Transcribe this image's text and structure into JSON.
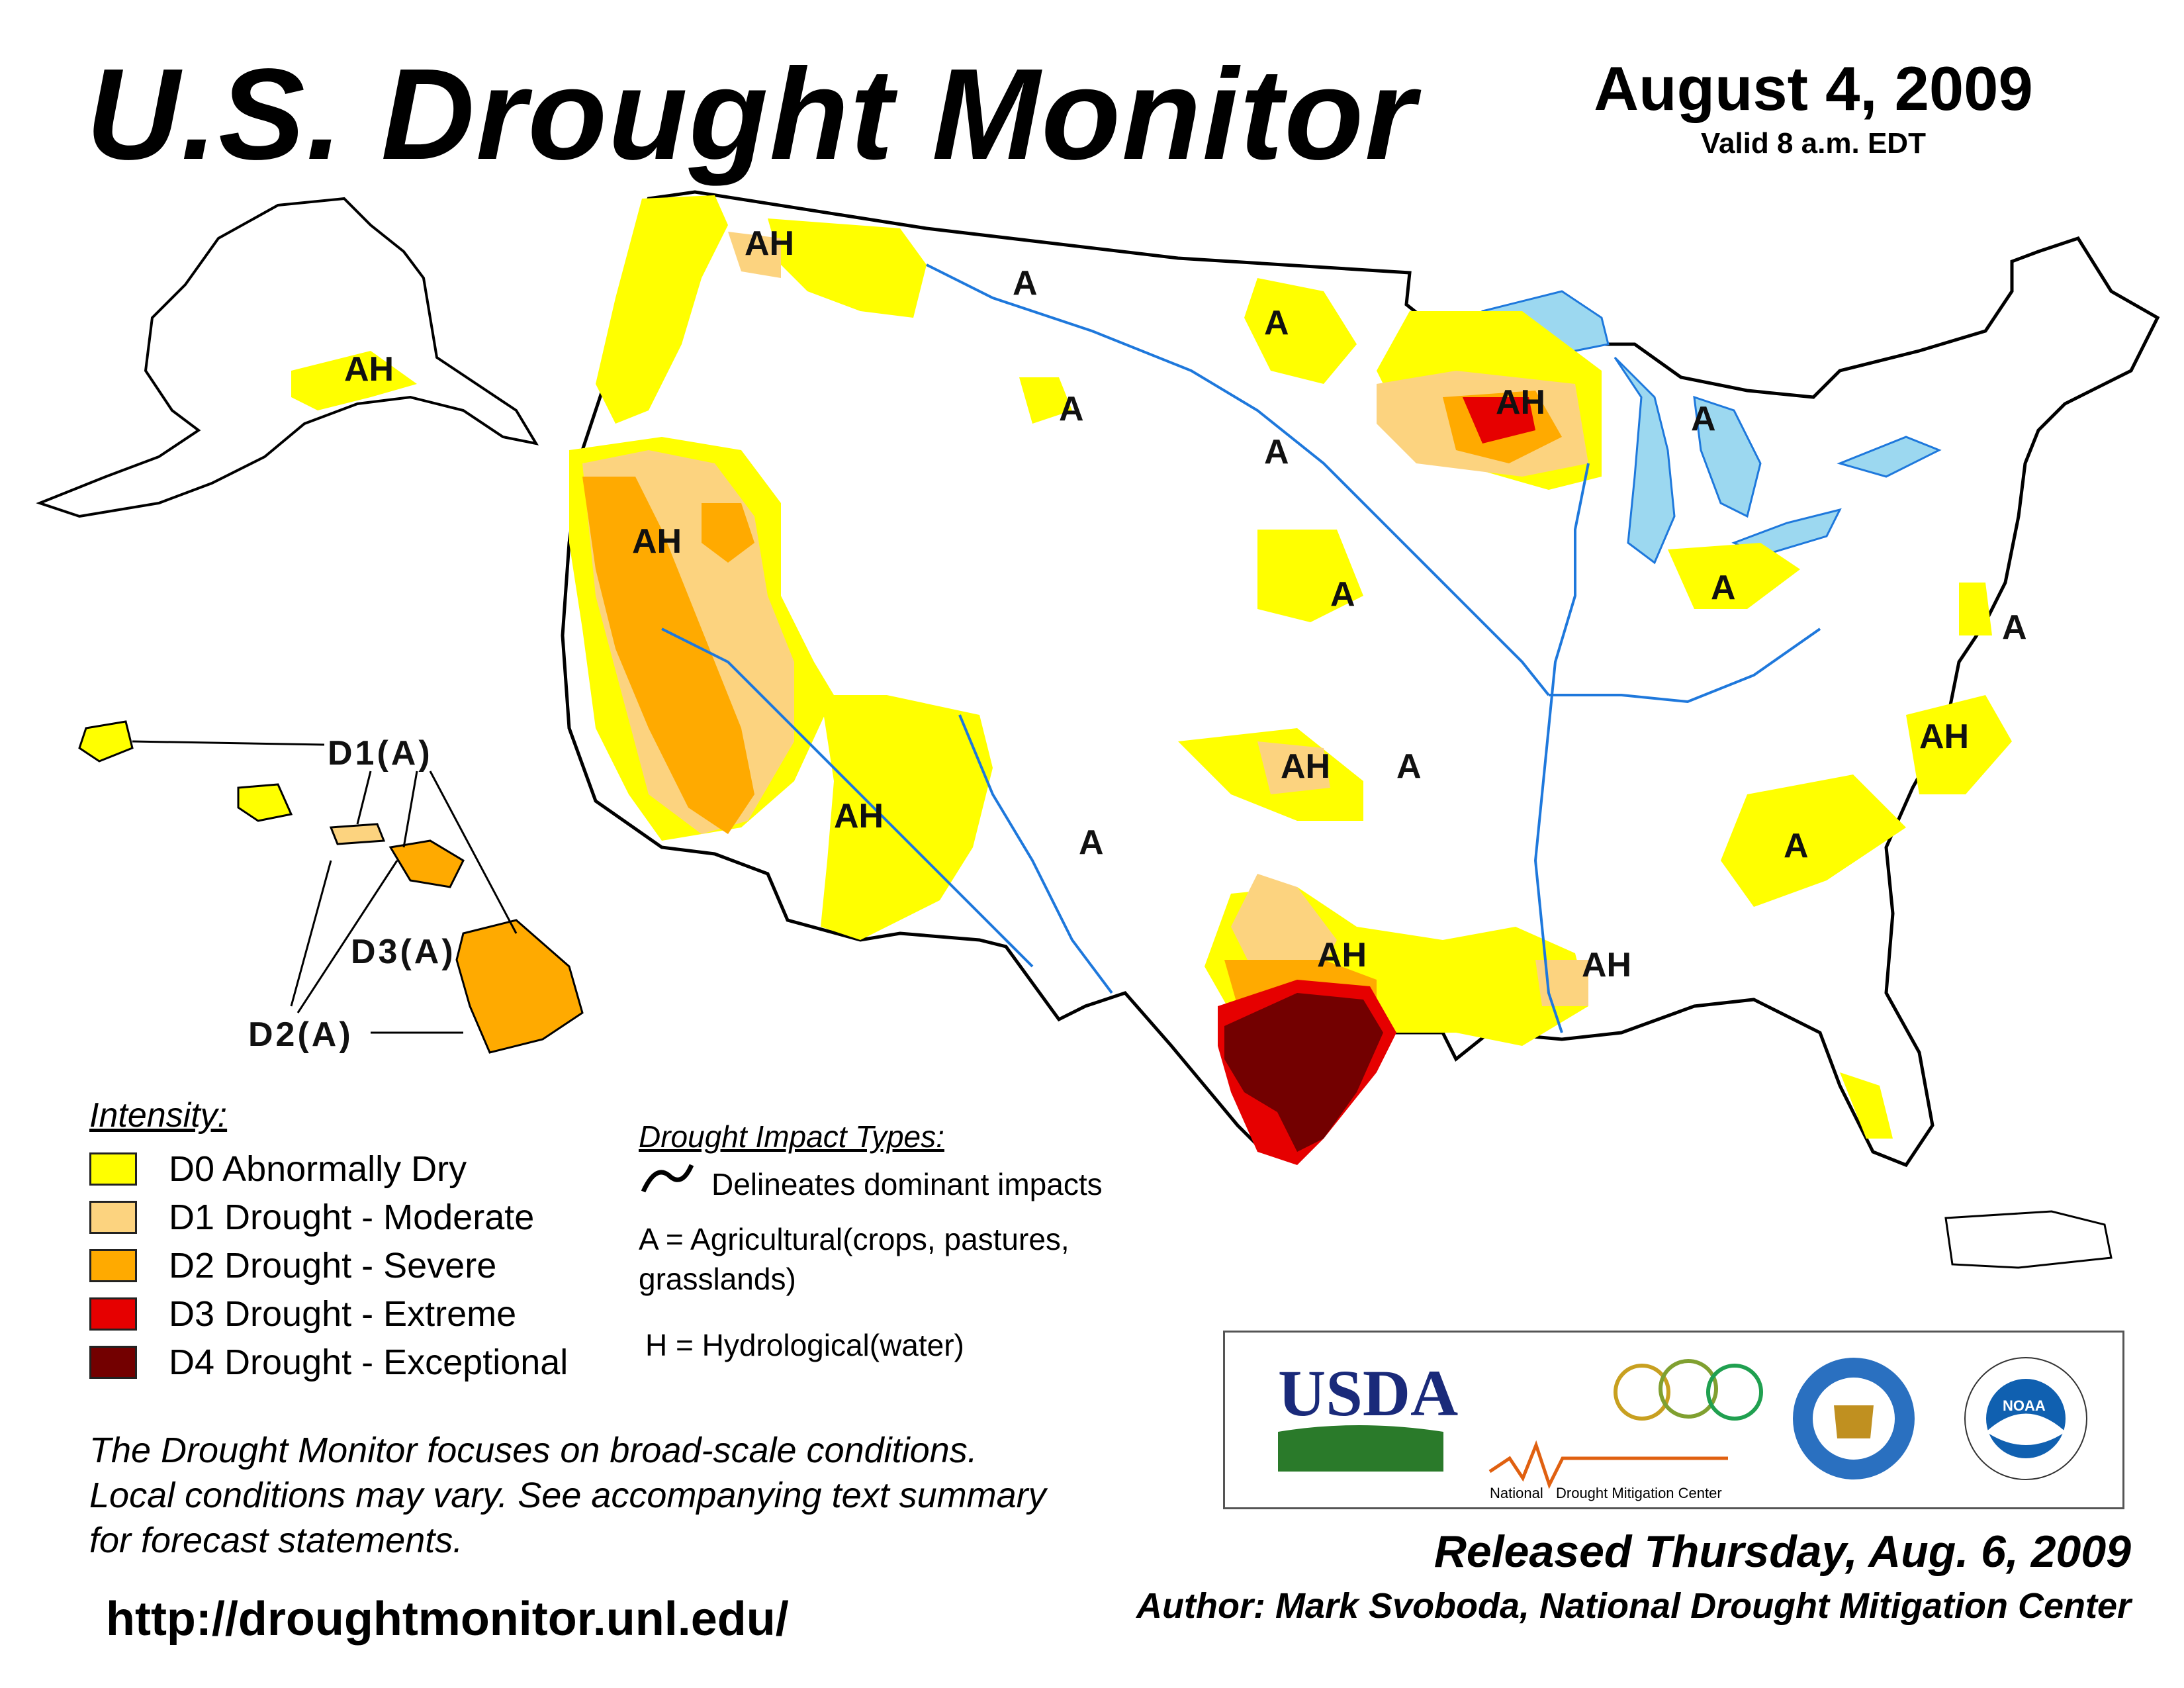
{
  "header": {
    "title": "U.S. Drought Monitor",
    "date": "August 4, 2009",
    "valid": "Valid 8 a.m. EDT"
  },
  "map": {
    "impact_labels": [
      "AH",
      "A",
      "A",
      "A",
      "A",
      "A",
      "AH",
      "A",
      "A",
      "AH",
      "AH",
      "A",
      "AH",
      "A",
      "AH",
      "A",
      "AH",
      "A",
      "AH",
      "AH"
    ],
    "hawaii_labels": [
      "D1(A)",
      "D3(A)",
      "D2(A)"
    ]
  },
  "legend": {
    "title": "Intensity:",
    "items": [
      {
        "label": "D0 Abnormally Dry",
        "color": "#FFFF00"
      },
      {
        "label": "D1 Drought - Moderate",
        "color": "#FCD37F"
      },
      {
        "label": "D2 Drought - Severe",
        "color": "#FFAA00"
      },
      {
        "label": "D3 Drought - Extreme",
        "color": "#E60000"
      },
      {
        "label": "D4 Drought - Exceptional",
        "color": "#730000"
      }
    ]
  },
  "impacts": {
    "title": "Drought Impact Types:",
    "line": "Delineates dominant impacts",
    "agricultural_1": "A = Agricultural(crops, pastures,",
    "agricultural_2": "grasslands)",
    "hydrological": "H = Hydrological(water)"
  },
  "note": {
    "line1": "The Drought Monitor focuses on broad-scale conditions.",
    "line2": "Local conditions may vary. See accompanying text summary",
    "line3": "for forecast statements."
  },
  "url": "http://droughtmonitor.unl.edu/",
  "logos": {
    "usda": "USDA",
    "ndmc_1": "National",
    "ndmc_2": "Drought Mitigation Center",
    "noaa": "NOAA"
  },
  "footer": {
    "released": "Released Thursday, Aug. 6, 2009",
    "author": "Author: Mark Svoboda, National Drought Mitigation Center"
  },
  "colors": {
    "water": "#9CD8F0",
    "rivers": "#1E78DC",
    "county_lines": "#9A9A9A",
    "state_lines": "#000000"
  }
}
